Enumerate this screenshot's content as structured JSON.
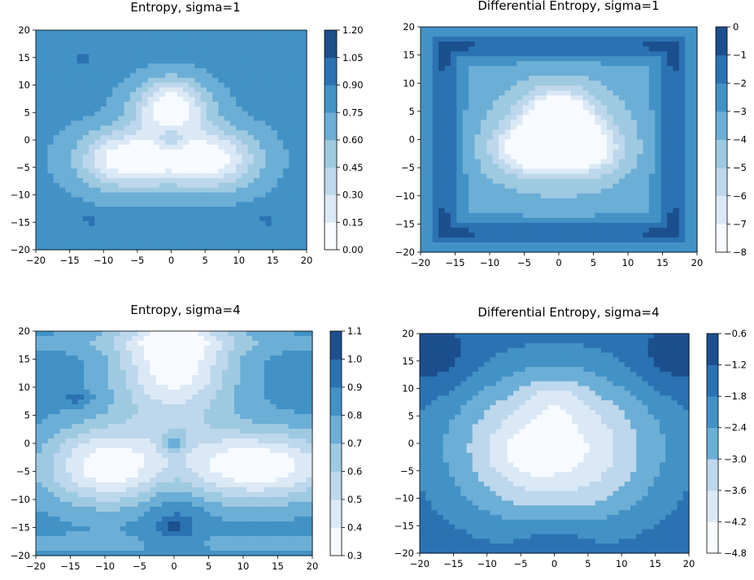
{
  "chart_data": [
    {
      "type": "contourf",
      "title": "Entropy, sigma=1",
      "xlim": [
        -20,
        20
      ],
      "ylim": [
        -20,
        20
      ],
      "xticks": [
        "−20",
        "−15",
        "−10",
        "−5",
        "0",
        "5",
        "10",
        "15",
        "20"
      ],
      "yticks": [
        "−20",
        "−15",
        "−10",
        "−5",
        "0",
        "5",
        "10",
        "15",
        "20"
      ],
      "colorbar": {
        "ticks": [
          "0.00",
          "0.15",
          "0.30",
          "0.45",
          "0.60",
          "0.75",
          "0.90",
          "1.05",
          "1.20"
        ],
        "range": [
          0.0,
          1.2
        ]
      },
      "field": {
        "background": 0.8,
        "lobes": [
          {
            "x": 0,
            "y": 6,
            "depth": 0.8,
            "sx": 3.8,
            "sy": 3.5
          },
          {
            "x": -6.5,
            "y": -3.5,
            "depth": 0.78,
            "sx": 5.0,
            "sy": 3.8
          },
          {
            "x": 5.5,
            "y": -3.5,
            "depth": 0.78,
            "sx": 5.0,
            "sy": 3.8
          }
        ],
        "core": {
          "x": 0,
          "y": 0,
          "value": 1.1
        },
        "hotspots": [
          {
            "x": -13,
            "y": 15,
            "value": 0.95
          },
          {
            "x": -12,
            "y": -14.5,
            "value": 0.95
          },
          {
            "x": 14,
            "y": -14.5,
            "value": 0.95
          }
        ]
      }
    },
    {
      "type": "contourf",
      "title": "Differential Entropy, sigma=1",
      "xlim": [
        -20,
        20
      ],
      "ylim": [
        -20,
        20
      ],
      "xticks": [
        "−20",
        "−15",
        "−10",
        "−5",
        "0",
        "5",
        "10",
        "15",
        "20"
      ],
      "yticks": [
        "−20",
        "−15",
        "−10",
        "−5",
        "0",
        "5",
        "10",
        "15",
        "20"
      ],
      "colorbar": {
        "ticks": [
          "−8",
          "−7",
          "−6",
          "−5",
          "−4",
          "−3",
          "−2",
          "−1",
          "0"
        ],
        "range": [
          -8,
          0
        ]
      },
      "field": {
        "ring": {
          "inner": 13.5,
          "outer": 19.5,
          "value": -0.4
        },
        "lobes": [
          {
            "x": 0,
            "y": 4.5,
            "depth": 5,
            "sx": 3.5,
            "sy": 3.0
          },
          {
            "x": -4,
            "y": -1.5,
            "depth": 5,
            "sx": 3.5,
            "sy": 3.0
          },
          {
            "x": 3.5,
            "y": -1.5,
            "depth": 5,
            "sx": 3.5,
            "sy": 3.0
          }
        ]
      }
    },
    {
      "type": "contourf",
      "title": "Entropy, sigma=4",
      "xlim": [
        -20,
        20
      ],
      "ylim": [
        -20,
        20
      ],
      "xticks": [
        "−20",
        "−15",
        "−10",
        "−5",
        "0",
        "5",
        "10",
        "15",
        "20"
      ],
      "yticks": [
        "−20",
        "−15",
        "−10",
        "−5",
        "0",
        "5",
        "10",
        "15",
        "20"
      ],
      "colorbar": {
        "ticks": [
          "0.3",
          "0.4",
          "0.5",
          "0.6",
          "0.7",
          "0.8",
          "0.9",
          "1.0",
          "1.1"
        ],
        "range": [
          0.3,
          1.1
        ]
      },
      "field": {
        "background": 0.85,
        "lobes": [
          {
            "x": 0,
            "y": 15,
            "depth": 0.55,
            "sx": 6.0,
            "sy": 8.0
          },
          {
            "x": -10,
            "y": -4,
            "depth": 0.5,
            "sx": 6.5,
            "sy": 5.0
          },
          {
            "x": 12,
            "y": -4,
            "depth": 0.55,
            "sx": 9.0,
            "sy": 4.5
          }
        ],
        "core": {
          "x": 0,
          "y": 0,
          "value": 1.05
        },
        "hotspots": [
          {
            "x": 0,
            "y": -15,
            "value": 0.97
          },
          {
            "x": -14,
            "y": 8,
            "value": 0.98
          }
        ]
      }
    },
    {
      "type": "contourf",
      "title": "Differential Entropy, sigma=4",
      "xlim": [
        -20,
        20
      ],
      "ylim": [
        -20,
        20
      ],
      "xticks": [
        "−20",
        "−15",
        "−10",
        "−5",
        "0",
        "5",
        "10",
        "15",
        "20"
      ],
      "yticks": [
        "−20",
        "−15",
        "−10",
        "−5",
        "0",
        "5",
        "10",
        "15",
        "20"
      ],
      "colorbar": {
        "ticks": [
          "−4.8",
          "−4.2",
          "−3.6",
          "−3.0",
          "−2.4",
          "−1.8",
          "−1.2",
          "−0.6"
        ],
        "range": [
          -4.8,
          -0.6
        ]
      },
      "field": {
        "background": -1.0,
        "lobes": [
          {
            "x": 0,
            "y": -2,
            "depth": 3.9,
            "sx": 11.0,
            "sy": 10.0
          }
        ],
        "hotspots": [
          {
            "x": -17,
            "y": 15,
            "value": -0.6
          },
          {
            "x": 17,
            "y": 15,
            "value": -0.6
          },
          {
            "x": 0,
            "y": -19,
            "value": -0.7
          }
        ]
      }
    }
  ],
  "colors": [
    "#f7fbff",
    "#dbe9f6",
    "#bdd7ec",
    "#9ecae1",
    "#6baed6",
    "#4292c6",
    "#2b72b3",
    "#1c4f8e"
  ]
}
